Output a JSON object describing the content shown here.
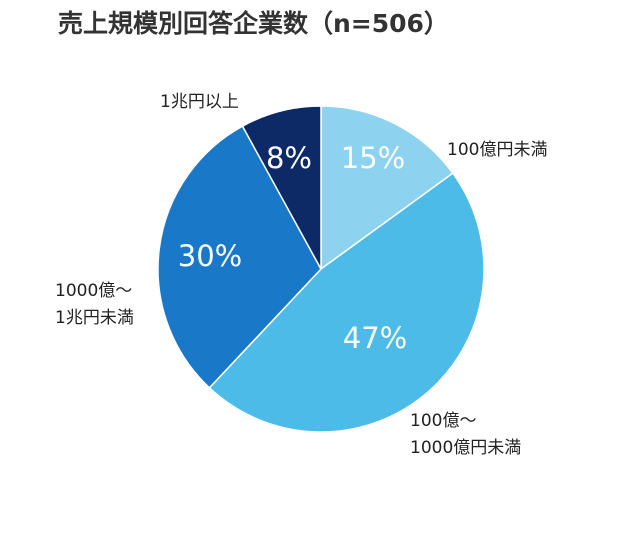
{
  "chart_data": {
    "type": "pie",
    "title": "売上規模別回答企業数（n=506）",
    "categories": [
      "100億円未満",
      "100億～\n1000億円未満",
      "1000億～\n1兆円未満",
      "1兆円以上"
    ],
    "values": [
      15,
      47,
      30,
      8
    ],
    "value_labels": [
      "15%",
      "47%",
      "30%",
      "8%"
    ],
    "colors": [
      "#8dd3f0",
      "#4dbbe8",
      "#1a78c8",
      "#0d2a66"
    ]
  }
}
